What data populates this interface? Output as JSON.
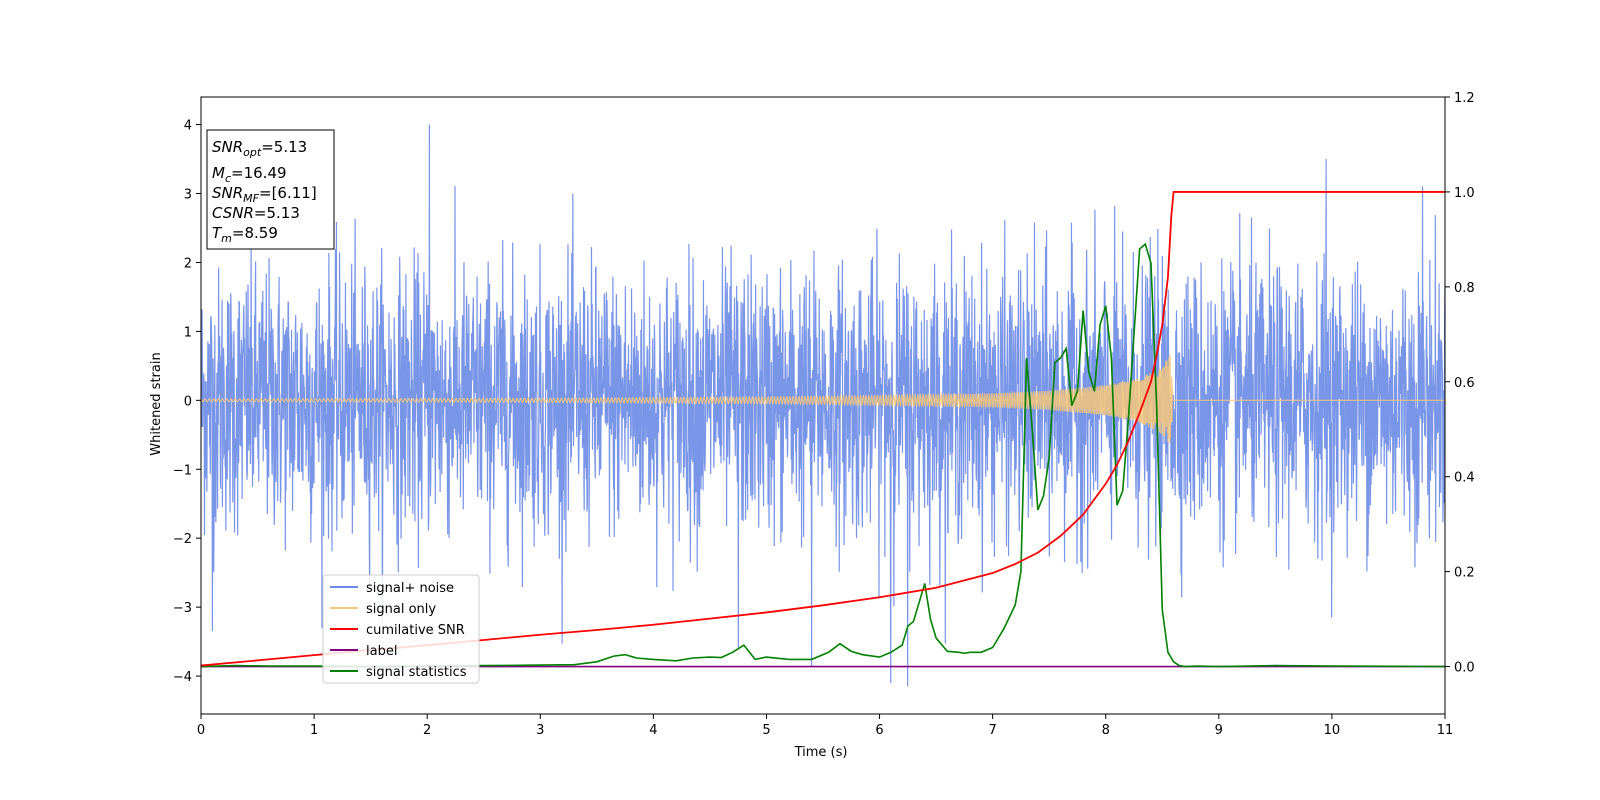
{
  "chart_data": {
    "type": "line",
    "xlabel": "Time (s)",
    "ylabel": "Whitened strain",
    "xlim": [
      0,
      11
    ],
    "ylim_left": [
      -4.55,
      4.4
    ],
    "ylim_right": [
      -0.1,
      1.2
    ],
    "x_ticks": [
      0,
      1,
      2,
      3,
      4,
      5,
      6,
      7,
      8,
      9,
      10,
      11
    ],
    "y_ticks_left": [
      -4,
      -3,
      -2,
      -1,
      0,
      1,
      2,
      3,
      4
    ],
    "y_ticks_right": [
      0.0,
      0.2,
      0.4,
      0.6,
      0.8,
      1.0,
      1.2
    ],
    "x_tick_labels": [
      "0",
      "1",
      "2",
      "3",
      "4",
      "5",
      "6",
      "7",
      "8",
      "9",
      "10",
      "11"
    ],
    "y_tick_labels_left": [
      "−4",
      "−3",
      "−2",
      "−1",
      "0",
      "1",
      "2",
      "3",
      "4"
    ],
    "y_tick_labels_right": [
      "0.0",
      "0.2",
      "0.4",
      "0.6",
      "0.8",
      "1.0",
      "1.2"
    ],
    "grid": false,
    "legend_position": "lower-left",
    "info_box": {
      "snr_opt": {
        "sym": "SNR",
        "sub": "opt",
        "value": "=5.13"
      },
      "mc": {
        "sym": "M",
        "sub": "c",
        "value": "=16.49"
      },
      "snr_mf": {
        "sym": "SNR",
        "sub": "MF",
        "value": "=[6.11]"
      },
      "csnr": {
        "sym": "CSNR",
        "value": "=5.13"
      },
      "tm": {
        "sym": "T",
        "sub": "m",
        "value": "=8.59"
      }
    },
    "series": [
      {
        "name": "signal+ noise",
        "axis": "left",
        "color": "#6a8ae6",
        "description_range": [
          -4.15,
          4.0
        ],
        "notable_peaks": [
          [
            0.1,
            -3.35
          ],
          [
            2.02,
            4.0
          ],
          [
            4.75,
            -3.6
          ],
          [
            5.4,
            -3.85
          ],
          [
            6.1,
            -4.1
          ],
          [
            6.25,
            -4.15
          ],
          [
            9.95,
            3.5
          ],
          [
            10.8,
            3.1
          ]
        ]
      },
      {
        "name": "signal only",
        "axis": "left",
        "color": "#f5c77a",
        "merger_time": 8.59,
        "envelope": [
          [
            0,
            0.02
          ],
          [
            3,
            0.03
          ],
          [
            5,
            0.05
          ],
          [
            6,
            0.07
          ],
          [
            7,
            0.1
          ],
          [
            7.5,
            0.14
          ],
          [
            8,
            0.22
          ],
          [
            8.3,
            0.32
          ],
          [
            8.5,
            0.5
          ],
          [
            8.59,
            0.72
          ]
        ]
      },
      {
        "name": "cumilative SNR",
        "axis": "right",
        "color": "#ff0000",
        "x": [
          0,
          0.5,
          1,
          1.5,
          2,
          2.5,
          3,
          3.5,
          4,
          4.5,
          5,
          5.5,
          6,
          6.5,
          7,
          7.2,
          7.4,
          7.6,
          7.8,
          8.0,
          8.1,
          8.2,
          8.3,
          8.4,
          8.45,
          8.5,
          8.55,
          8.58,
          8.6,
          11
        ],
        "y": [
          0.002,
          0.013,
          0.024,
          0.035,
          0.045,
          0.056,
          0.067,
          0.077,
          0.088,
          0.101,
          0.114,
          0.129,
          0.146,
          0.166,
          0.197,
          0.216,
          0.24,
          0.275,
          0.32,
          0.385,
          0.425,
          0.475,
          0.535,
          0.6,
          0.655,
          0.72,
          0.82,
          0.95,
          1.0,
          1.0
        ]
      },
      {
        "name": "label",
        "axis": "right",
        "color": "#800080",
        "x": [
          0,
          11
        ],
        "y": [
          0,
          0
        ]
      },
      {
        "name": "signal statistics",
        "axis": "right",
        "color": "#008000",
        "x": [
          0,
          0.3,
          0.6,
          1,
          1.5,
          2,
          2.5,
          3,
          3.3,
          3.5,
          3.65,
          3.75,
          3.85,
          4.0,
          4.2,
          4.35,
          4.5,
          4.6,
          4.7,
          4.8,
          4.9,
          5.0,
          5.2,
          5.4,
          5.55,
          5.65,
          5.75,
          5.85,
          6.0,
          6.1,
          6.2,
          6.25,
          6.3,
          6.4,
          6.45,
          6.5,
          6.6,
          6.7,
          6.75,
          6.8,
          6.9,
          7.0,
          7.1,
          7.2,
          7.25,
          7.3,
          7.35,
          7.4,
          7.45,
          7.5,
          7.55,
          7.6,
          7.65,
          7.7,
          7.75,
          7.8,
          7.85,
          7.9,
          7.95,
          8.0,
          8.05,
          8.1,
          8.15,
          8.2,
          8.25,
          8.3,
          8.35,
          8.4,
          8.45,
          8.5,
          8.55,
          8.6,
          8.65,
          8.7,
          8.8,
          9.0,
          9.5,
          10,
          11
        ],
        "y": [
          0.0,
          0.002,
          0.001,
          0.001,
          0.0,
          0.001,
          0.002,
          0.003,
          0.004,
          0.01,
          0.022,
          0.025,
          0.018,
          0.015,
          0.012,
          0.018,
          0.02,
          0.019,
          0.03,
          0.045,
          0.015,
          0.02,
          0.015,
          0.015,
          0.03,
          0.048,
          0.032,
          0.025,
          0.02,
          0.03,
          0.045,
          0.085,
          0.095,
          0.175,
          0.1,
          0.06,
          0.032,
          0.03,
          0.028,
          0.03,
          0.03,
          0.04,
          0.08,
          0.13,
          0.2,
          0.65,
          0.5,
          0.33,
          0.36,
          0.44,
          0.64,
          0.65,
          0.67,
          0.55,
          0.58,
          0.75,
          0.62,
          0.58,
          0.72,
          0.76,
          0.65,
          0.34,
          0.37,
          0.52,
          0.7,
          0.88,
          0.89,
          0.85,
          0.55,
          0.12,
          0.03,
          0.01,
          0.002,
          0.0,
          0.001,
          0.0,
          0.002,
          0.001,
          0.0
        ]
      }
    ]
  }
}
